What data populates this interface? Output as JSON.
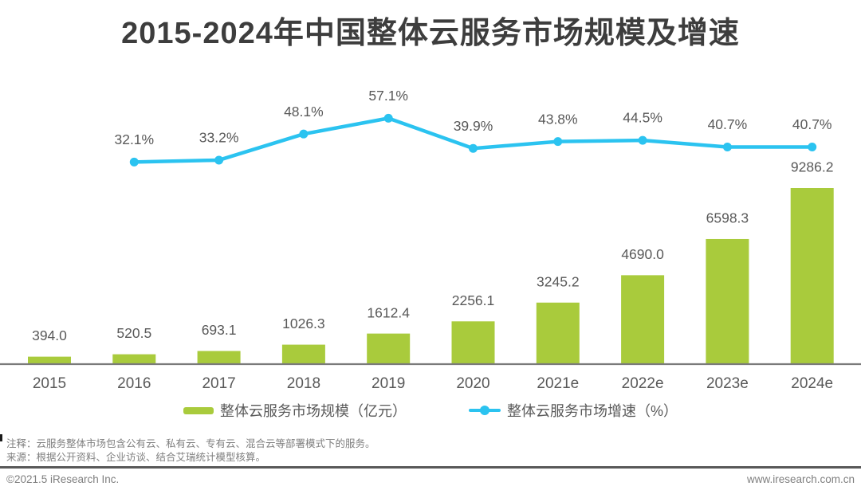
{
  "title": "2015-2024年中国整体云服务市场规模及增速",
  "chart_data": {
    "type": "bar",
    "subtype": "combo-bar-line",
    "title": "2015-2024年中国整体云服务市场规模及增速",
    "categories": [
      "2015",
      "2016",
      "2017",
      "2018",
      "2019",
      "2020",
      "2021e",
      "2022e",
      "2023e",
      "2024e"
    ],
    "series": [
      {
        "name": "整体云服务市场规模（亿元）",
        "type": "bar",
        "color": "#A9CB3C",
        "values": [
          394.0,
          520.5,
          693.1,
          1026.3,
          1612.4,
          2256.1,
          3245.2,
          4690.0,
          6598.3,
          9286.2
        ],
        "value_label_suffix": ""
      },
      {
        "name": "整体云服务市场增速（%）",
        "type": "line",
        "color": "#2BC3F0",
        "start_category_index": 1,
        "values": [
          32.1,
          33.2,
          48.1,
          57.1,
          39.9,
          43.8,
          44.5,
          40.7,
          40.7
        ],
        "value_label_suffix": "%"
      }
    ],
    "xlabel": "",
    "ylabel": "",
    "bar_axis_range": [
      0,
      9300
    ],
    "line_axis_range": [
      0,
      60
    ],
    "grid": false,
    "value_labels_shown": true,
    "legend_position": "bottom"
  },
  "notes": {
    "annotation": "注释：云服务整体市场包含公有云、私有云、专有云、混合云等部署模式下的服务。",
    "source": "来源：根据公开资料、企业访谈、结合艾瑞统计模型核算。"
  },
  "footer": {
    "copyright": "©2021.5 iResearch Inc.",
    "website": "www.iresearch.com.cn"
  },
  "colors": {
    "title": "#3D3D3D",
    "label": "#595959",
    "axis_line": "#7A7A7A",
    "note_text": "#7F7F7F",
    "divider": "#595959",
    "bar": "#A9CB3C",
    "line": "#2BC3F0"
  }
}
